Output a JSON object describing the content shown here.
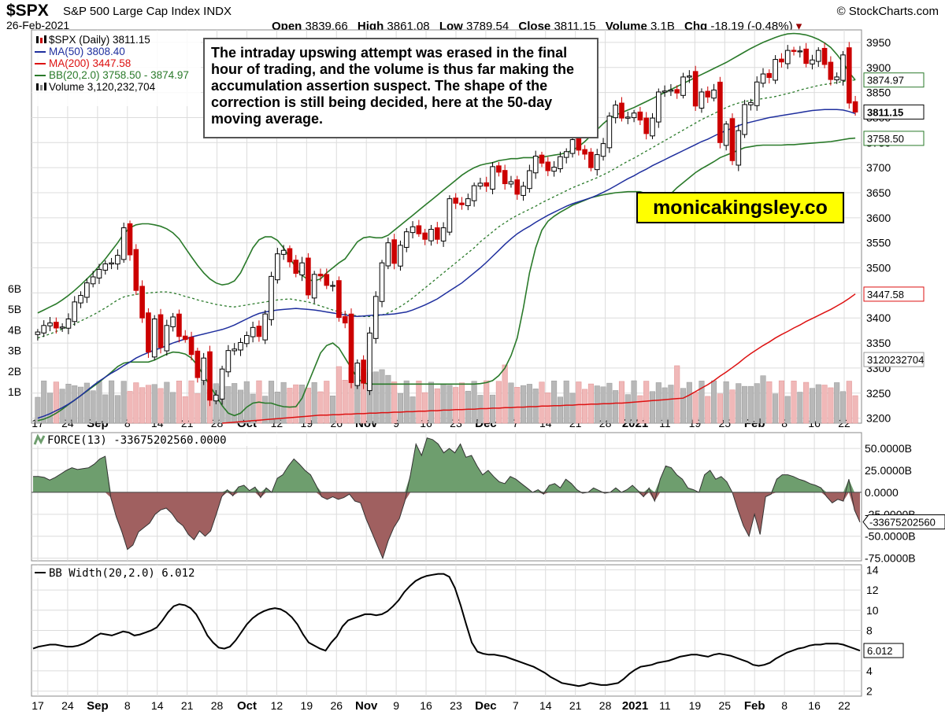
{
  "header": {
    "symbol": "$SPX",
    "description": "S&P 500 Large Cap Index INDX",
    "credit": "© StockCharts.com",
    "date": "26-Feb-2021",
    "open_label": "Open",
    "open": "3839.66",
    "high_label": "High",
    "high": "3861.08",
    "low_label": "Low",
    "low": "3789.54",
    "close_label": "Close",
    "close": "3811.15",
    "volume_label": "Volume",
    "volume": "3.1B",
    "chg_label": "Chg",
    "chg": "-18.19 (-0.48%)"
  },
  "colors": {
    "up": "#000000",
    "down": "#cc0000",
    "ma50": "#1f2f9e",
    "ma200": "#dd1111",
    "bb": "#2a7a2a",
    "vol_up": "#b8b8b8",
    "vol_down": "#f0b8b8",
    "force_pos": "#6e9e6e",
    "force_neg": "#a06060",
    "grid": "#dcdcdc",
    "brand_bg": "#ffff00"
  },
  "annotation": "The intraday upswing attempt was erased in the final hour of trading, and the volume is thus far making the accumulation assertion suspect. The shape of the correction is still being decided, here at the 50-day moving average.",
  "watermark": "monicakingsley.co",
  "chart_data": [
    {
      "type": "candlestick",
      "legend": {
        "price": "$SPX (Daily) 3811.15",
        "ma50": "MA(50) 3808.40",
        "ma200": "MA(200) 3447.58",
        "bb": "BB(20,2.0) 3758.50 - 3874.97",
        "volume": "Volume 3,120,232,704"
      },
      "legend_placement": "top-left",
      "ylim": [
        3190,
        3975
      ],
      "y_ticks": [
        "3950",
        "3900",
        "3850",
        "3800",
        "3750",
        "3700",
        "3650",
        "3600",
        "3550",
        "3500",
        "3450",
        "3400",
        "3350",
        "3300",
        "3250",
        "3200"
      ],
      "volume_ticks": [
        "6B",
        "5B",
        "4B",
        "3B",
        "2B",
        "1B"
      ],
      "x_ticks": [
        "17",
        "24",
        "Sep",
        "8",
        "14",
        "21",
        "28",
        "Oct",
        "12",
        "19",
        "26",
        "Nov",
        "9",
        "16",
        "23",
        "Dec",
        "7",
        "14",
        "21",
        "28",
        "2021",
        "11",
        "19",
        "25",
        "Feb",
        "8",
        "16",
        "22"
      ],
      "tags": [
        "3874.97",
        "3811.15",
        "3758.50",
        "3447.58",
        "3120232704"
      ],
      "close": [
        3372,
        3385,
        3390,
        3380,
        3382,
        3398,
        3432,
        3445,
        3470,
        3482,
        3497,
        3508,
        3510,
        3525,
        3580,
        3526,
        3455,
        3400,
        3332,
        3398,
        3341,
        3385,
        3402,
        3363,
        3357,
        3327,
        3281,
        3320,
        3236,
        3246,
        3298,
        3335,
        3338,
        3351,
        3365,
        3381,
        3363,
        3408,
        3483,
        3528,
        3535,
        3512,
        3489,
        3510,
        3446,
        3487,
        3484,
        3465,
        3465,
        3401,
        3390,
        3271,
        3310,
        3270,
        3370,
        3443,
        3510,
        3550,
        3509,
        3545,
        3572,
        3582,
        3568,
        3557,
        3577,
        3557,
        3580,
        3638,
        3629,
        3626,
        3638,
        3664,
        3669,
        3663,
        3702,
        3691,
        3668,
        3672,
        3647,
        3663,
        3694,
        3723,
        3709,
        3694,
        3701,
        3722,
        3732,
        3756,
        3735,
        3727,
        3700,
        3726,
        3748,
        3803,
        3825,
        3799,
        3801,
        3809,
        3795,
        3768,
        3799,
        3851,
        3853,
        3855,
        3849,
        3881,
        3883,
        3823,
        3851,
        3841,
        3855,
        3750,
        3787,
        3714,
        3774,
        3826,
        3830,
        3871,
        3887,
        3880,
        3916,
        3911,
        3934,
        3932,
        3933,
        3908,
        3915,
        3934,
        3906,
        3876,
        3881,
        3925,
        3829,
        3811
      ],
      "ma50": [
        3200,
        3204,
        3209,
        3215,
        3221,
        3228,
        3236,
        3245,
        3255,
        3265,
        3274,
        3282,
        3290,
        3297,
        3305,
        3312,
        3320,
        3326,
        3331,
        3336,
        3340,
        3345,
        3350,
        3354,
        3358,
        3362,
        3365,
        3368,
        3371,
        3374,
        3377,
        3381,
        3386,
        3392,
        3398,
        3404,
        3409,
        3412,
        3414,
        3416,
        3417,
        3418,
        3419,
        3418,
        3417,
        3416,
        3414,
        3412,
        3410,
        3408,
        3406,
        3404,
        3403,
        3404,
        3405,
        3406,
        3406,
        3407,
        3408,
        3410,
        3412,
        3416,
        3421,
        3426,
        3432,
        3438,
        3446,
        3454,
        3462,
        3470,
        3480,
        3490,
        3500,
        3511,
        3523,
        3535,
        3547,
        3558,
        3568,
        3576,
        3583,
        3591,
        3598,
        3605,
        3611,
        3617,
        3623,
        3628,
        3632,
        3636,
        3640,
        3645,
        3651,
        3657,
        3664,
        3671,
        3678,
        3684,
        3691,
        3697,
        3704,
        3710,
        3716,
        3722,
        3728,
        3734,
        3740,
        3746,
        3752,
        3757,
        3763,
        3769,
        3774,
        3779,
        3784,
        3788,
        3791,
        3794,
        3797,
        3800,
        3802,
        3804,
        3806,
        3808,
        3810,
        3812,
        3814,
        3815,
        3816,
        3816,
        3816,
        3815,
        3812,
        3808
      ],
      "ma200": [
        3160,
        3161,
        3162,
        3163,
        3164,
        3165,
        3166,
        3167,
        3168,
        3169,
        3170,
        3171,
        3172,
        3173,
        3174,
        3175,
        3176,
        3177,
        3178,
        3179,
        3180,
        3181,
        3182,
        3183,
        3184,
        3185,
        3186,
        3187,
        3188,
        3189,
        3190,
        3191,
        3192,
        3193,
        3194,
        3195,
        3196,
        3197,
        3198,
        3199,
        3200,
        3201,
        3202,
        3203,
        3204,
        3205,
        3206,
        3206,
        3207,
        3207,
        3208,
        3208,
        3209,
        3209,
        3210,
        3210,
        3211,
        3211,
        3212,
        3212,
        3213,
        3213,
        3214,
        3214,
        3215,
        3215,
        3216,
        3216,
        3217,
        3217,
        3218,
        3218,
        3219,
        3219,
        3220,
        3220,
        3221,
        3221,
        3222,
        3222,
        3223,
        3223,
        3224,
        3224,
        3225,
        3225,
        3226,
        3226,
        3227,
        3227,
        3228,
        3228,
        3229,
        3229,
        3230,
        3230,
        3231,
        3232,
        3233,
        3234,
        3235,
        3236,
        3237,
        3238,
        3239,
        3240,
        3246,
        3253,
        3260,
        3267,
        3275,
        3284,
        3292,
        3301,
        3310,
        3320,
        3329,
        3337,
        3345,
        3352,
        3360,
        3367,
        3373,
        3380,
        3386,
        3393,
        3399,
        3405,
        3411,
        3417,
        3424,
        3431,
        3439,
        3448
      ],
      "bb_mid": [
        3360,
        3364,
        3368,
        3373,
        3378,
        3383,
        3388,
        3394,
        3400,
        3406,
        3413,
        3420,
        3428,
        3436,
        3442,
        3445,
        3447,
        3449,
        3450,
        3451,
        3452,
        3452,
        3450,
        3447,
        3443,
        3440,
        3436,
        3433,
        3430,
        3427,
        3425,
        3423,
        3422,
        3424,
        3426,
        3428,
        3430,
        3432,
        3434,
        3436,
        3437,
        3438,
        3436,
        3434,
        3432,
        3428,
        3424,
        3420,
        3416,
        3412,
        3408,
        3406,
        3404,
        3403,
        3403,
        3404,
        3406,
        3410,
        3416,
        3423,
        3431,
        3440,
        3450,
        3460,
        3470,
        3480,
        3490,
        3500,
        3510,
        3520,
        3530,
        3540,
        3552,
        3562,
        3572,
        3582,
        3590,
        3598,
        3605,
        3611,
        3617,
        3623,
        3630,
        3636,
        3642,
        3648,
        3654,
        3660,
        3665,
        3670,
        3675,
        3680,
        3686,
        3692,
        3699,
        3706,
        3713,
        3719,
        3726,
        3733,
        3740,
        3747,
        3754,
        3761,
        3768,
        3775,
        3782,
        3789,
        3796,
        3802,
        3808,
        3814,
        3820,
        3825,
        3829,
        3832,
        3834,
        3836,
        3838,
        3840,
        3842,
        3845,
        3848,
        3851,
        3855,
        3858,
        3861,
        3864,
        3866,
        3868,
        3870,
        3872,
        3874,
        3875
      ],
      "bb_upper": [
        3410,
        3416,
        3422,
        3428,
        3436,
        3445,
        3455,
        3466,
        3478,
        3490,
        3504,
        3518,
        3534,
        3550,
        3568,
        3580,
        3586,
        3588,
        3588,
        3586,
        3583,
        3578,
        3570,
        3558,
        3540,
        3522,
        3505,
        3490,
        3478,
        3470,
        3466,
        3468,
        3474,
        3490,
        3515,
        3540,
        3556,
        3562,
        3562,
        3555,
        3540,
        3520,
        3500,
        3485,
        3476,
        3474,
        3478,
        3490,
        3500,
        3510,
        3518,
        3535,
        3552,
        3560,
        3562,
        3560,
        3560,
        3565,
        3575,
        3585,
        3595,
        3605,
        3615,
        3625,
        3635,
        3645,
        3655,
        3665,
        3675,
        3685,
        3693,
        3700,
        3705,
        3708,
        3710,
        3714,
        3716,
        3718,
        3718,
        3720,
        3720,
        3720,
        3721,
        3723,
        3725,
        3727,
        3730,
        3735,
        3742,
        3752,
        3764,
        3776,
        3788,
        3798,
        3805,
        3810,
        3815,
        3820,
        3826,
        3832,
        3838,
        3844,
        3850,
        3856,
        3862,
        3868,
        3874,
        3880,
        3886,
        3892,
        3898,
        3904,
        3910,
        3917,
        3924,
        3931,
        3938,
        3944,
        3950,
        3955,
        3960,
        3964,
        3967,
        3968,
        3967,
        3965,
        3961,
        3956,
        3949,
        3940,
        3926,
        3910,
        3890,
        3875
      ],
      "bb_lower": [
        3195,
        3198,
        3203,
        3210,
        3218,
        3227,
        3236,
        3245,
        3254,
        3263,
        3272,
        3282,
        3292,
        3303,
        3310,
        3312,
        3312,
        3312,
        3312,
        3316,
        3322,
        3328,
        3332,
        3331,
        3328,
        3320,
        3305,
        3285,
        3265,
        3245,
        3225,
        3210,
        3205,
        3210,
        3222,
        3230,
        3232,
        3230,
        3230,
        3226,
        3223,
        3222,
        3223,
        3240,
        3270,
        3300,
        3330,
        3345,
        3350,
        3340,
        3320,
        3300,
        3280,
        3270,
        3268,
        3268,
        3268,
        3268,
        3268,
        3268,
        3268,
        3268,
        3268,
        3268,
        3268,
        3268,
        3268,
        3268,
        3268,
        3268,
        3268,
        3268,
        3269,
        3271,
        3275,
        3285,
        3300,
        3325,
        3360,
        3420,
        3490,
        3540,
        3575,
        3593,
        3603,
        3611,
        3618,
        3625,
        3630,
        3635,
        3640,
        3643,
        3646,
        3648,
        3650,
        3651,
        3652,
        3652,
        3652,
        3648,
        3640,
        3630,
        3635,
        3648,
        3660,
        3670,
        3680,
        3690,
        3698,
        3705,
        3712,
        3720,
        3725,
        3730,
        3735,
        3740,
        3742,
        3744,
        3745,
        3745,
        3745,
        3745,
        3746,
        3746,
        3747,
        3748,
        3749,
        3750,
        3751,
        3752,
        3754,
        3756,
        3758,
        3759
      ]
    },
    {
      "type": "area",
      "title": "FORCE(13) -33675202560.0000",
      "ylim": [
        -78,
        68
      ],
      "y_ticks": [
        "50.0000B",
        "25.0000B",
        "0.0000",
        "-25.0000B",
        "-50.0000B",
        "-75.0000B"
      ],
      "tags": [
        "-33675202560"
      ],
      "units": "B",
      "values": [
        18,
        18,
        17,
        14,
        17,
        21,
        25,
        28,
        26,
        27,
        28,
        32,
        38,
        41,
        -6,
        -28,
        -45,
        -65,
        -60,
        -45,
        -40,
        -35,
        -25,
        -20,
        -18,
        -24,
        -33,
        -38,
        -48,
        -54,
        -44,
        -50,
        -44,
        -25,
        -5,
        3,
        -4,
        6,
        8,
        2,
        6,
        -6,
        5,
        0,
        16,
        20,
        30,
        38,
        32,
        25,
        20,
        8,
        -5,
        -8,
        -5,
        -8,
        -6,
        -2,
        -10,
        -12,
        -30,
        -45,
        -60,
        -75,
        -55,
        -40,
        -30,
        -10,
        20,
        55,
        42,
        62,
        60,
        55,
        45,
        50,
        45,
        55,
        40,
        42,
        30,
        20,
        25,
        18,
        12,
        10,
        18,
        15,
        10,
        5,
        0,
        3,
        -2,
        8,
        10,
        5,
        15,
        10,
        3,
        -1,
        0,
        5,
        2,
        -1,
        0,
        5,
        0,
        3,
        8,
        2,
        -5,
        5,
        -10,
        15,
        30,
        28,
        20,
        15,
        5,
        3,
        0,
        20,
        25,
        15,
        18,
        12,
        0,
        -20,
        -38,
        -50,
        -25,
        -48,
        -5,
        -2,
        15,
        20,
        20,
        18,
        15,
        13,
        10,
        8,
        5,
        -5,
        -12,
        -8,
        -10,
        15,
        -20,
        -34
      ]
    },
    {
      "type": "line",
      "title": "BB Width(20,2.0) 6.012",
      "ylim": [
        1.5,
        14.5
      ],
      "y_ticks": [
        "14",
        "12",
        "10",
        "8",
        "6",
        "4",
        "2"
      ],
      "tags": [
        "6.012"
      ],
      "values": [
        6.2,
        6.4,
        6.5,
        6.6,
        6.6,
        6.5,
        6.4,
        6.4,
        6.5,
        6.7,
        7.0,
        7.4,
        7.7,
        7.6,
        7.5,
        7.7,
        7.9,
        7.8,
        7.5,
        7.6,
        7.8,
        8.0,
        8.3,
        9.0,
        9.8,
        10.4,
        10.6,
        10.5,
        10.2,
        9.6,
        8.6,
        7.5,
        6.8,
        6.3,
        6.2,
        6.4,
        7.0,
        7.8,
        8.6,
        9.2,
        9.6,
        9.9,
        10.1,
        10.2,
        10.1,
        9.8,
        9.3,
        8.6,
        7.6,
        6.8,
        6.5,
        6.2,
        6.0,
        6.8,
        7.4,
        8.4,
        9.0,
        9.2,
        9.4,
        9.6,
        9.6,
        9.5,
        9.6,
        9.9,
        10.4,
        11.0,
        11.8,
        12.4,
        12.9,
        13.2,
        13.4,
        13.5,
        13.6,
        13.6,
        13.3,
        12.2,
        10.5,
        8.6,
        6.8,
        5.9,
        5.7,
        5.6,
        5.6,
        5.5,
        5.4,
        5.2,
        5.0,
        4.8,
        4.6,
        4.4,
        4.1,
        3.8,
        3.4,
        3.1,
        2.8,
        2.7,
        2.6,
        2.5,
        2.6,
        2.8,
        2.7,
        2.6,
        2.6,
        2.7,
        2.8,
        3.2,
        3.7,
        4.1,
        4.4,
        4.5,
        4.6,
        4.8,
        4.9,
        5.0,
        5.2,
        5.4,
        5.5,
        5.6,
        5.6,
        5.5,
        5.4,
        5.6,
        5.7,
        5.6,
        5.5,
        5.3,
        5.1,
        4.9,
        4.6,
        4.5,
        4.6,
        4.8,
        5.2,
        5.5,
        5.8,
        6.0,
        6.2,
        6.3,
        6.5,
        6.6,
        6.6,
        6.7,
        6.7,
        6.7,
        6.6,
        6.4,
        6.2,
        6.0
      ]
    }
  ]
}
